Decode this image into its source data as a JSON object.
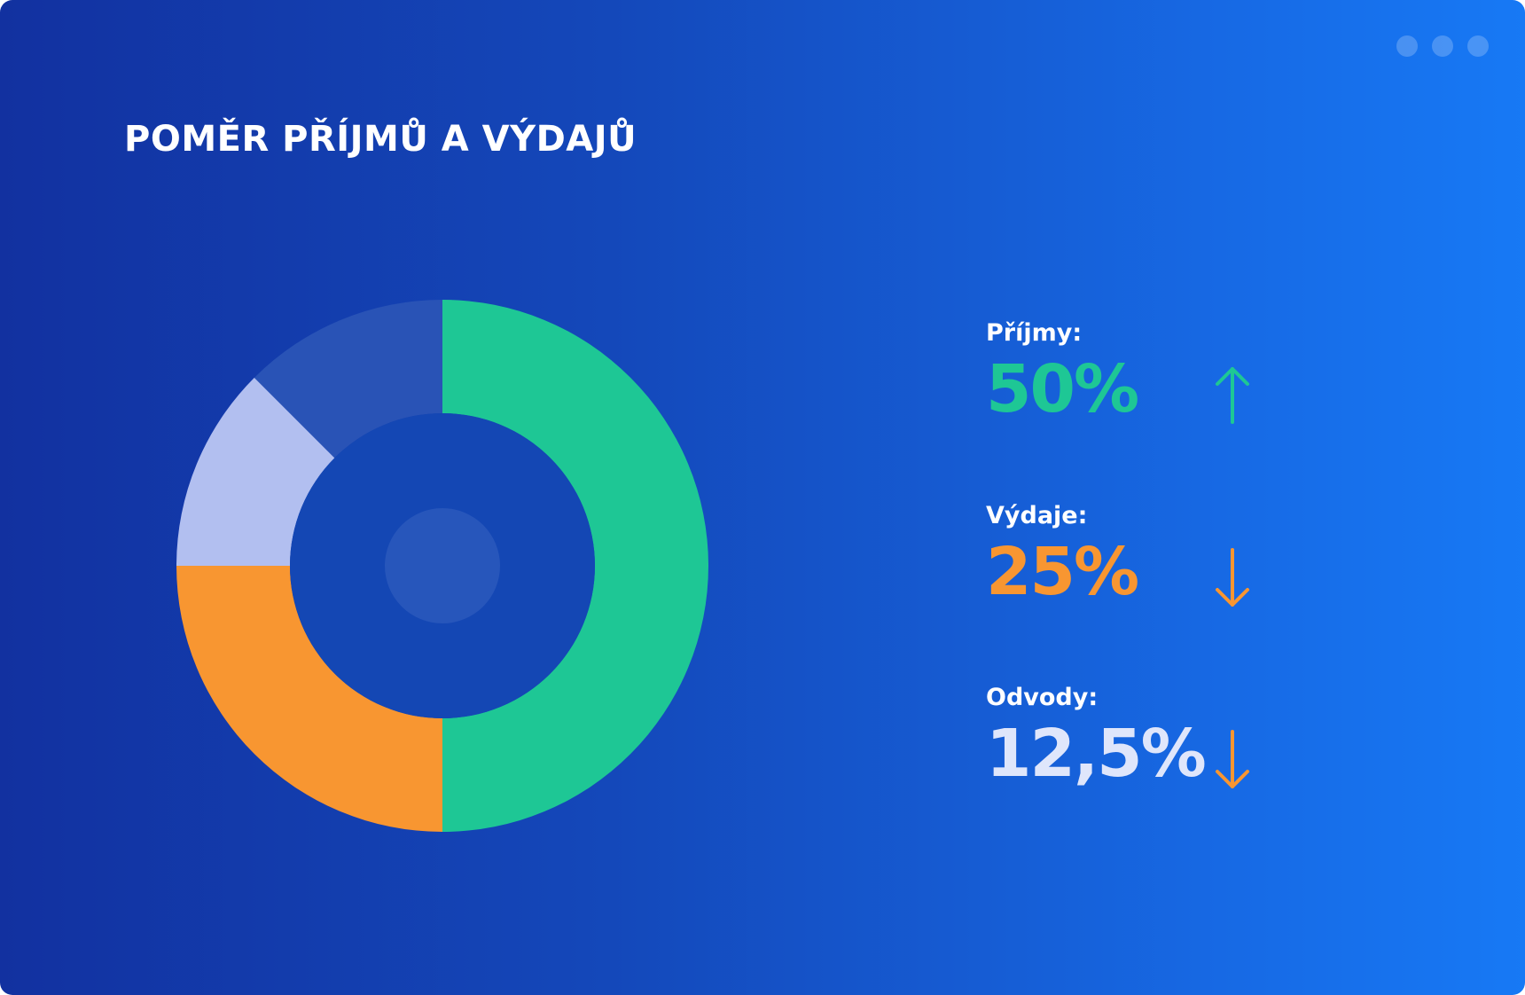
{
  "window": {
    "dots": [
      "window-dot",
      "window-dot",
      "window-dot"
    ]
  },
  "title": "POMĚR PŘÍJMŮ A VÝDAJŮ",
  "colors": {
    "income": "#1ec795",
    "expenses": "#f89631",
    "levies": "#b2bff0",
    "other": "#2953b6",
    "levies_value_text": "#dfe6fb",
    "hole": "#1447b4",
    "center_dot": "#2756bb"
  },
  "stats": [
    {
      "label": "Příjmy:",
      "value": "50%",
      "trend": "up",
      "arrow_icon": "arrow-up-icon",
      "value_color": "#1ec795",
      "arrow_color": "#1ec795"
    },
    {
      "label": "Výdaje:",
      "value": "25%",
      "trend": "down",
      "arrow_icon": "arrow-down-icon",
      "value_color": "#f89631",
      "arrow_color": "#f89631"
    },
    {
      "label": "Odvody:",
      "value": "12,5%",
      "trend": "down",
      "arrow_icon": "arrow-down-icon",
      "value_color": "#dfe6fb",
      "arrow_color": "#f89631"
    }
  ],
  "chart_data": {
    "type": "pie",
    "variant": "donut",
    "categories": [
      "Příjmy",
      "Výdaje",
      "Odvody",
      ""
    ],
    "values": [
      50,
      25,
      12.5,
      12.5
    ],
    "colors": [
      "#1ec795",
      "#f89631",
      "#b2bff0",
      "#2953b6"
    ],
    "start_angle": "12 o'clock",
    "direction": "clockwise"
  }
}
